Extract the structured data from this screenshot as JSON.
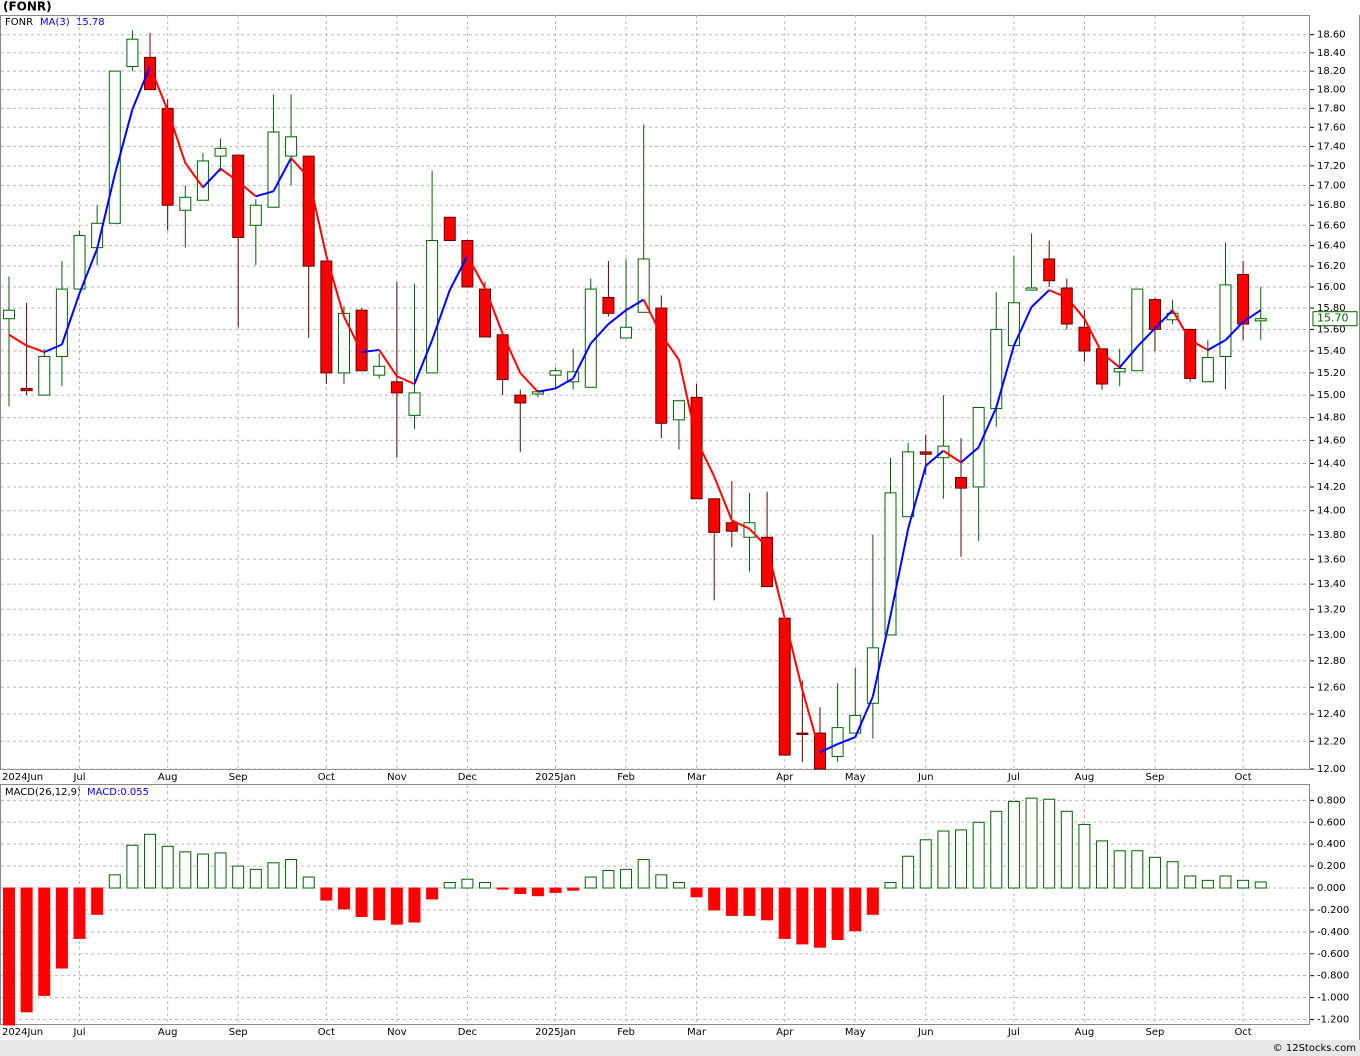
{
  "chart_data": [
    {
      "type": "candlestick",
      "title": "(FONR)",
      "log_scale": true,
      "grid": true,
      "categories": [
        "2024Jun",
        null,
        null,
        null,
        "Jul",
        null,
        null,
        null,
        null,
        "Aug",
        null,
        null,
        null,
        "Sep",
        null,
        null,
        null,
        null,
        "Oct",
        null,
        null,
        null,
        "Nov",
        null,
        null,
        null,
        "Dec",
        null,
        null,
        null,
        null,
        "2025Jan",
        null,
        null,
        null,
        "Feb",
        null,
        null,
        null,
        "Mar",
        null,
        null,
        null,
        null,
        "Apr",
        null,
        null,
        null,
        "May",
        null,
        null,
        null,
        "Jun",
        null,
        null,
        null,
        null,
        "Jul",
        null,
        null,
        null,
        "Aug",
        null,
        null,
        null,
        "Sep",
        null,
        null,
        null,
        null,
        "Oct",
        null
      ],
      "ylim": [
        12,
        18.82
      ],
      "yticks": [
        {
          "value": 12,
          "label": "12.00"
        },
        {
          "value": 12.2,
          "label": "12.20"
        },
        {
          "value": 12.4,
          "label": "12.40"
        },
        {
          "value": 12.6,
          "label": "12.60"
        },
        {
          "value": 12.8,
          "label": "12.80"
        },
        {
          "value": 13,
          "label": "13.00"
        },
        {
          "value": 13.2,
          "label": "13.20"
        },
        {
          "value": 13.4,
          "label": "13.40"
        },
        {
          "value": 13.6,
          "label": "13.60"
        },
        {
          "value": 13.8,
          "label": "13.80"
        },
        {
          "value": 14,
          "label": "14.00"
        },
        {
          "value": 14.2,
          "label": "14.20"
        },
        {
          "value": 14.4,
          "label": "14.40"
        },
        {
          "value": 14.6,
          "label": "14.60"
        },
        {
          "value": 14.8,
          "label": "14.80"
        },
        {
          "value": 15,
          "label": "15.00"
        },
        {
          "value": 15.2,
          "label": "15.20"
        },
        {
          "value": 15.4,
          "label": "15.40"
        },
        {
          "value": 15.6,
          "label": "15.60"
        },
        {
          "value": 15.8,
          "label": "15.80"
        },
        {
          "value": 16,
          "label": "16.00"
        },
        {
          "value": 16.2,
          "label": "16.20"
        },
        {
          "value": 16.4,
          "label": "16.40"
        },
        {
          "value": 16.6,
          "label": "16.60"
        },
        {
          "value": 16.8,
          "label": "16.80"
        },
        {
          "value": 17,
          "label": "17.00"
        },
        {
          "value": 17.2,
          "label": "17.20"
        },
        {
          "value": 17.4,
          "label": "17.40"
        },
        {
          "value": 17.6,
          "label": "17.60"
        },
        {
          "value": 17.8,
          "label": "17.80"
        },
        {
          "value": 18,
          "label": "18.00"
        },
        {
          "value": 18.2,
          "label": "18.20"
        },
        {
          "value": 18.4,
          "label": "18.40"
        },
        {
          "value": 18.6,
          "label": "18.60"
        }
      ],
      "series": [
        {
          "name": "FONR",
          "color": "#006400",
          "up_color": "#ffffff",
          "down_color": "#ff0000",
          "last_label": "15.70",
          "open": [
            15.7,
            15.06,
            15.0,
            15.35,
            15.98,
            16.38,
            16.62,
            18.25,
            18.35,
            17.8,
            16.75,
            16.85,
            17.3,
            17.31,
            16.6,
            16.78,
            17.3,
            17.3,
            16.25,
            15.2,
            15.78,
            15.18,
            15.12,
            14.82,
            15.2,
            16.68,
            16.45,
            15.98,
            15.55,
            15.0,
            15.01,
            15.18,
            15.12,
            15.07,
            15.9,
            15.52,
            15.76,
            15.8,
            14.78,
            14.98,
            14.1,
            13.9,
            13.78,
            13.78,
            13.13,
            12.26,
            12.26,
            12.09,
            12.26,
            12.48,
            13.0,
            13.95,
            14.5,
            14.45,
            14.28,
            14.2,
            14.88,
            15.45,
            15.97,
            16.27,
            15.99,
            15.62,
            15.42,
            15.21,
            15.22,
            15.88,
            15.69,
            15.6,
            15.12,
            15.35,
            16.12,
            15.68
          ],
          "high": [
            16.1,
            15.85,
            15.42,
            16.25,
            16.55,
            16.8,
            18.2,
            18.65,
            18.62,
            17.9,
            17.0,
            17.33,
            17.48,
            17.31,
            16.86,
            17.95,
            17.95,
            17.3,
            16.25,
            15.82,
            15.8,
            15.38,
            16.05,
            16.03,
            17.15,
            16.68,
            16.45,
            16.05,
            15.55,
            15.05,
            15.05,
            15.25,
            15.42,
            16.08,
            16.25,
            16.27,
            17.63,
            15.92,
            14.95,
            15.1,
            14.1,
            14.25,
            14.15,
            14.16,
            13.13,
            12.65,
            12.45,
            12.63,
            12.75,
            13.8,
            14.45,
            14.58,
            14.65,
            15.0,
            14.62,
            14.89,
            15.95,
            16.3,
            16.52,
            16.45,
            16.08,
            15.78,
            15.42,
            15.42,
            15.98,
            15.9,
            15.88,
            15.6,
            15.5,
            16.43,
            16.25,
            16.0
          ],
          "low": [
            14.9,
            15.0,
            15.0,
            15.08,
            15.98,
            16.21,
            16.62,
            18.2,
            18.0,
            16.55,
            16.38,
            16.85,
            17.14,
            15.62,
            16.21,
            16.78,
            17.0,
            15.52,
            15.1,
            15.1,
            15.22,
            15.15,
            14.45,
            14.7,
            15.2,
            16.45,
            16.0,
            15.53,
            15.0,
            14.5,
            14.98,
            15.05,
            15.05,
            15.07,
            15.72,
            15.52,
            15.76,
            14.62,
            14.52,
            14.1,
            13.27,
            13.7,
            13.5,
            13.38,
            12.1,
            12.05,
            12.0,
            12.05,
            12.26,
            12.22,
            13.0,
            13.95,
            14.3,
            14.1,
            13.62,
            13.75,
            14.72,
            15.45,
            15.97,
            16.0,
            15.6,
            15.3,
            15.05,
            15.08,
            15.22,
            15.4,
            15.65,
            15.12,
            15.12,
            15.05,
            15.5,
            15.5
          ],
          "close": [
            15.78,
            15.04,
            15.35,
            15.98,
            16.5,
            16.62,
            18.2,
            18.55,
            18.0,
            16.8,
            16.88,
            17.25,
            17.38,
            16.48,
            16.8,
            17.55,
            17.5,
            16.2,
            15.2,
            15.75,
            15.22,
            15.26,
            15.02,
            15.02,
            16.45,
            16.45,
            16.0,
            15.53,
            15.14,
            14.93,
            15.03,
            15.22,
            15.21,
            15.98,
            15.75,
            15.62,
            16.27,
            14.75,
            14.95,
            14.1,
            13.82,
            13.83,
            13.9,
            13.38,
            12.1,
            12.25,
            12.0,
            12.3,
            12.39,
            12.9,
            14.15,
            14.5,
            14.48,
            14.55,
            14.19,
            14.89,
            15.6,
            15.85,
            15.99,
            16.06,
            15.65,
            15.4,
            15.1,
            15.24,
            15.98,
            15.6,
            15.75,
            15.15,
            15.34,
            16.02,
            15.65,
            15.7
          ]
        },
        {
          "name": "MA(3)",
          "type": "line",
          "color": "#0000ff",
          "up_color": "#0000ff",
          "down_color": "#ff0000",
          "value_label": "15.78",
          "values": [
            15.55,
            15.45,
            15.39,
            15.46,
            15.94,
            16.37,
            17.11,
            17.79,
            18.25,
            17.78,
            17.23,
            16.98,
            17.17,
            17.04,
            16.89,
            16.94,
            17.28,
            17.08,
            16.3,
            15.72,
            15.39,
            15.41,
            15.17,
            15.1,
            15.5,
            15.97,
            16.3,
            15.99,
            15.56,
            15.2,
            15.03,
            15.06,
            15.15,
            15.47,
            15.65,
            15.78,
            15.88,
            15.55,
            15.32,
            14.6,
            14.29,
            13.92,
            13.85,
            13.7,
            13.13,
            12.58,
            12.12,
            12.18,
            12.23,
            12.53,
            13.15,
            13.85,
            14.38,
            14.51,
            14.41,
            14.54,
            14.89,
            15.45,
            15.81,
            15.97,
            15.9,
            15.7,
            15.38,
            15.25,
            15.44,
            15.61,
            15.78,
            15.5,
            15.41,
            15.5,
            15.67,
            15.78
          ]
        }
      ]
    },
    {
      "type": "bar",
      "title": "MACD(26,12,9)",
      "value_label": "MACD:0.055",
      "up_color": "#006400",
      "down_color": "#ff0000",
      "grid": true,
      "ylim": [
        -1.25,
        0.94
      ],
      "yticks": [
        {
          "value": 0.8,
          "label": "0.800"
        },
        {
          "value": 0.6,
          "label": "0.600"
        },
        {
          "value": 0.4,
          "label": "0.400"
        },
        {
          "value": 0.2,
          "label": "0.200"
        },
        {
          "value": 0,
          "label": "0.000"
        },
        {
          "value": -0.2,
          "label": "-0.200"
        },
        {
          "value": -0.4,
          "label": "-0.400"
        },
        {
          "value": -0.6,
          "label": "-0.600"
        },
        {
          "value": -0.8,
          "label": "-0.800"
        },
        {
          "value": -1,
          "label": "-1.000"
        },
        {
          "value": -1.2,
          "label": "-1.200"
        }
      ],
      "values": [
        -1.25,
        -1.13,
        -0.98,
        -0.73,
        -0.46,
        -0.24,
        0.12,
        0.39,
        0.49,
        0.38,
        0.33,
        0.31,
        0.32,
        0.2,
        0.17,
        0.23,
        0.26,
        0.1,
        -0.11,
        -0.19,
        -0.26,
        -0.29,
        -0.33,
        -0.31,
        -0.1,
        0.05,
        0.08,
        0.05,
        -0.01,
        -0.05,
        -0.07,
        -0.04,
        -0.02,
        0.1,
        0.16,
        0.17,
        0.26,
        0.12,
        0.05,
        -0.08,
        -0.2,
        -0.25,
        -0.25,
        -0.29,
        -0.46,
        -0.51,
        -0.54,
        -0.47,
        -0.39,
        -0.24,
        0.05,
        0.29,
        0.44,
        0.52,
        0.53,
        0.6,
        0.7,
        0.79,
        0.82,
        0.81,
        0.7,
        0.58,
        0.43,
        0.34,
        0.34,
        0.28,
        0.24,
        0.11,
        0.07,
        0.11,
        0.07,
        0.055
      ]
    }
  ],
  "footer": "© 12Stocks.com"
}
